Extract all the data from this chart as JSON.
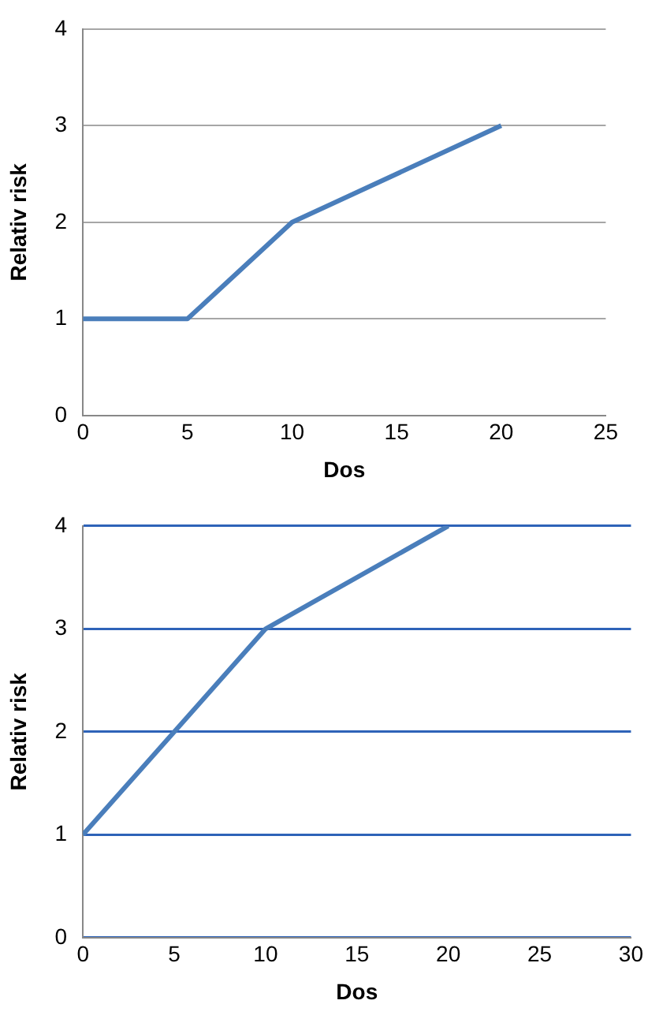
{
  "chart_data": [
    {
      "type": "line",
      "xlabel": "Dos",
      "ylabel": "Relativ risk",
      "x": [
        0,
        5,
        10,
        20
      ],
      "series": [
        {
          "color": "#4a7ebb",
          "values": [
            1,
            1,
            2,
            3
          ]
        }
      ],
      "xlim": [
        0,
        25
      ],
      "xticks": [
        0,
        5,
        10,
        15,
        20,
        25
      ],
      "ylim": [
        0,
        4
      ],
      "yticks": [
        0,
        1,
        2,
        3,
        4
      ],
      "grid": "y",
      "legend": false,
      "marker": "none",
      "line_style": "solid"
    },
    {
      "type": "line",
      "xlabel": "Dos",
      "ylabel": "Relativ risk",
      "x": [
        0,
        10,
        20
      ],
      "series": [
        {
          "color": "#4a7ebb",
          "values": [
            1,
            3,
            4
          ]
        }
      ],
      "xlim": [
        0,
        30
      ],
      "xticks": [
        0,
        5,
        10,
        15,
        20,
        25,
        30
      ],
      "ylim": [
        0,
        4
      ],
      "yticks": [
        0,
        1,
        2,
        3,
        4
      ],
      "grid": "y",
      "legend": false,
      "marker": "none",
      "line_style": "solid"
    }
  ]
}
